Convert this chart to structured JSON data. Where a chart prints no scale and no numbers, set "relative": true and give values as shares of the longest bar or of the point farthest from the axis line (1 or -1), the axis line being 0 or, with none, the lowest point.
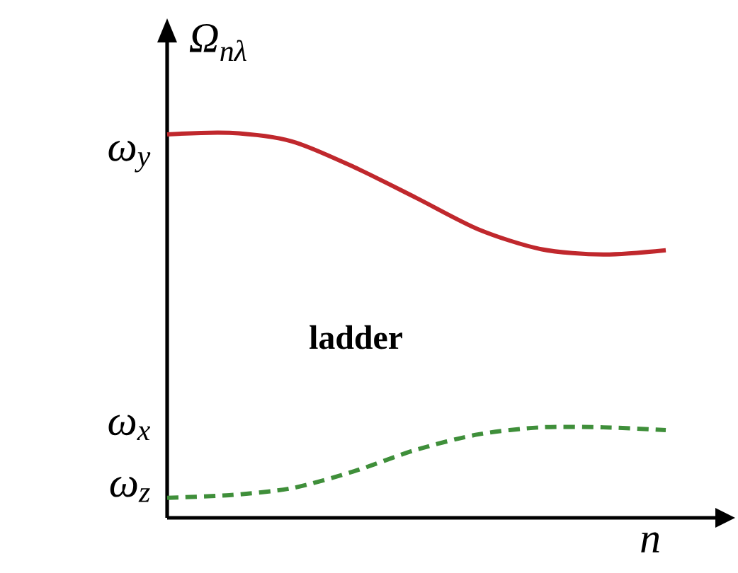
{
  "chart_data": {
    "type": "line",
    "xlabel": "n",
    "ylabel": "Ω$_{nλ}$",
    "relative": true,
    "categories": [
      null,
      null,
      null,
      null,
      null,
      null,
      null,
      null,
      null
    ],
    "annotations": [
      "ω$_{y}$",
      "ω$_{x}$",
      "ω$_{z}$",
      "ladder"
    ],
    "series": [
      {
        "color": "#c0282d",
        "line_style": "solid",
        "values": [
          0.996,
          1,
          0.978,
          0.911,
          0.831,
          0.749,
          0.698,
          0.684,
          0.695
        ]
      },
      {
        "color": "#3f8f3a",
        "line_style": "dashed",
        "values": [
          0.052,
          0.059,
          0.077,
          0.121,
          0.177,
          0.217,
          0.235,
          0.235,
          0.228
        ]
      }
    ]
  }
}
